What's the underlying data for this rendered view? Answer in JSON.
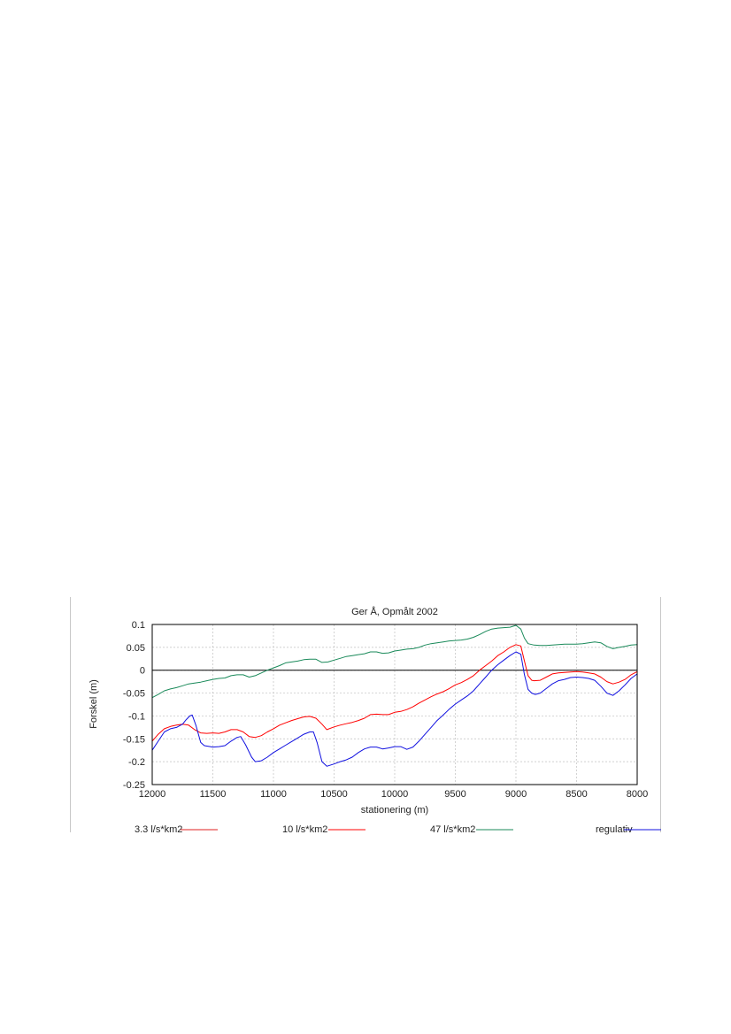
{
  "chart_data": {
    "type": "line",
    "title": "Ger Å, Opmålt 2002",
    "xlabel": "stationering (m)",
    "ylabel": "Forskel (m)",
    "xlim": [
      12000,
      8000
    ],
    "ylim": [
      -0.25,
      0.1
    ],
    "x_reversed": true,
    "grid": true,
    "legend_position": "bottom",
    "x_ticks": [
      12000,
      11500,
      11000,
      10500,
      10000,
      9500,
      9000,
      8500,
      8000
    ],
    "y_ticks": [
      0.1,
      0.05,
      0,
      -0.05,
      -0.1,
      -0.15,
      -0.2,
      -0.25
    ],
    "x_tick_labels": [
      "12000",
      "11500",
      "11000",
      "10500",
      "10000",
      "9500",
      "9000",
      "8500",
      "8000"
    ],
    "y_tick_labels": [
      "0.1",
      "0.05",
      "0",
      "-0.05",
      "-0.1",
      "-0.15",
      "-0.2",
      "-0.25"
    ],
    "reference_line": 0,
    "series": [
      {
        "name": "3.3 l/s*km2",
        "color": "#e02020",
        "show_line": false,
        "points": []
      },
      {
        "name": "10 l/s*km2",
        "color": "#ff0000",
        "show_line": true,
        "points": [
          [
            12000,
            -0.155
          ],
          [
            11950,
            -0.14
          ],
          [
            11900,
            -0.128
          ],
          [
            11850,
            -0.123
          ],
          [
            11800,
            -0.12
          ],
          [
            11750,
            -0.118
          ],
          [
            11700,
            -0.12
          ],
          [
            11650,
            -0.13
          ],
          [
            11600,
            -0.137
          ],
          [
            11550,
            -0.138
          ],
          [
            11500,
            -0.137
          ],
          [
            11450,
            -0.138
          ],
          [
            11400,
            -0.135
          ],
          [
            11350,
            -0.13
          ],
          [
            11300,
            -0.13
          ],
          [
            11250,
            -0.135
          ],
          [
            11200,
            -0.145
          ],
          [
            11150,
            -0.147
          ],
          [
            11100,
            -0.143
          ],
          [
            11050,
            -0.135
          ],
          [
            11000,
            -0.128
          ],
          [
            10950,
            -0.12
          ],
          [
            10900,
            -0.115
          ],
          [
            10850,
            -0.11
          ],
          [
            10800,
            -0.106
          ],
          [
            10750,
            -0.102
          ],
          [
            10700,
            -0.101
          ],
          [
            10650,
            -0.105
          ],
          [
            10600,
            -0.118
          ],
          [
            10560,
            -0.13
          ],
          [
            10500,
            -0.124
          ],
          [
            10450,
            -0.12
          ],
          [
            10400,
            -0.117
          ],
          [
            10350,
            -0.114
          ],
          [
            10300,
            -0.11
          ],
          [
            10250,
            -0.105
          ],
          [
            10200,
            -0.097
          ],
          [
            10150,
            -0.096
          ],
          [
            10100,
            -0.097
          ],
          [
            10050,
            -0.097
          ],
          [
            10000,
            -0.092
          ],
          [
            9950,
            -0.09
          ],
          [
            9900,
            -0.086
          ],
          [
            9850,
            -0.08
          ],
          [
            9800,
            -0.072
          ],
          [
            9750,
            -0.065
          ],
          [
            9700,
            -0.058
          ],
          [
            9650,
            -0.052
          ],
          [
            9600,
            -0.047
          ],
          [
            9550,
            -0.04
          ],
          [
            9500,
            -0.032
          ],
          [
            9450,
            -0.027
          ],
          [
            9400,
            -0.02
          ],
          [
            9350,
            -0.012
          ],
          [
            9300,
            0.0
          ],
          [
            9250,
            0.01
          ],
          [
            9200,
            0.02
          ],
          [
            9150,
            0.032
          ],
          [
            9100,
            0.04
          ],
          [
            9050,
            0.05
          ],
          [
            9000,
            0.056
          ],
          [
            8960,
            0.053
          ],
          [
            8930,
            0.02
          ],
          [
            8900,
            -0.012
          ],
          [
            8870,
            -0.022
          ],
          [
            8850,
            -0.023
          ],
          [
            8800,
            -0.022
          ],
          [
            8750,
            -0.015
          ],
          [
            8700,
            -0.008
          ],
          [
            8650,
            -0.006
          ],
          [
            8600,
            -0.005
          ],
          [
            8550,
            -0.004
          ],
          [
            8500,
            -0.003
          ],
          [
            8450,
            -0.004
          ],
          [
            8400,
            -0.006
          ],
          [
            8350,
            -0.008
          ],
          [
            8300,
            -0.015
          ],
          [
            8250,
            -0.025
          ],
          [
            8200,
            -0.03
          ],
          [
            8150,
            -0.026
          ],
          [
            8100,
            -0.02
          ],
          [
            8050,
            -0.01
          ],
          [
            8000,
            -0.003
          ]
        ]
      },
      {
        "name": "47 l/s*km2",
        "color": "#1a8a5a",
        "show_line": true,
        "points": [
          [
            12000,
            -0.06
          ],
          [
            11950,
            -0.053
          ],
          [
            11900,
            -0.045
          ],
          [
            11850,
            -0.041
          ],
          [
            11800,
            -0.038
          ],
          [
            11750,
            -0.034
          ],
          [
            11700,
            -0.03
          ],
          [
            11650,
            -0.028
          ],
          [
            11600,
            -0.026
          ],
          [
            11550,
            -0.023
          ],
          [
            11500,
            -0.02
          ],
          [
            11450,
            -0.018
          ],
          [
            11400,
            -0.017
          ],
          [
            11350,
            -0.012
          ],
          [
            11300,
            -0.01
          ],
          [
            11250,
            -0.01
          ],
          [
            11200,
            -0.015
          ],
          [
            11150,
            -0.012
          ],
          [
            11100,
            -0.006
          ],
          [
            11050,
            0.0
          ],
          [
            11000,
            0.005
          ],
          [
            10950,
            0.01
          ],
          [
            10900,
            0.016
          ],
          [
            10850,
            0.018
          ],
          [
            10800,
            0.02
          ],
          [
            10750,
            0.023
          ],
          [
            10700,
            0.024
          ],
          [
            10650,
            0.024
          ],
          [
            10600,
            0.017
          ],
          [
            10550,
            0.018
          ],
          [
            10500,
            0.022
          ],
          [
            10450,
            0.026
          ],
          [
            10400,
            0.03
          ],
          [
            10350,
            0.032
          ],
          [
            10300,
            0.034
          ],
          [
            10250,
            0.036
          ],
          [
            10200,
            0.04
          ],
          [
            10150,
            0.04
          ],
          [
            10100,
            0.037
          ],
          [
            10050,
            0.038
          ],
          [
            10000,
            0.042
          ],
          [
            9950,
            0.044
          ],
          [
            9900,
            0.046
          ],
          [
            9850,
            0.047
          ],
          [
            9800,
            0.05
          ],
          [
            9750,
            0.055
          ],
          [
            9700,
            0.058
          ],
          [
            9650,
            0.06
          ],
          [
            9600,
            0.062
          ],
          [
            9550,
            0.064
          ],
          [
            9500,
            0.065
          ],
          [
            9450,
            0.066
          ],
          [
            9400,
            0.068
          ],
          [
            9350,
            0.072
          ],
          [
            9300,
            0.078
          ],
          [
            9250,
            0.085
          ],
          [
            9200,
            0.09
          ],
          [
            9150,
            0.092
          ],
          [
            9100,
            0.093
          ],
          [
            9050,
            0.094
          ],
          [
            9000,
            0.098
          ],
          [
            8960,
            0.09
          ],
          [
            8930,
            0.07
          ],
          [
            8900,
            0.058
          ],
          [
            8850,
            0.055
          ],
          [
            8800,
            0.054
          ],
          [
            8750,
            0.054
          ],
          [
            8700,
            0.055
          ],
          [
            8650,
            0.056
          ],
          [
            8600,
            0.057
          ],
          [
            8550,
            0.057
          ],
          [
            8500,
            0.057
          ],
          [
            8450,
            0.058
          ],
          [
            8400,
            0.06
          ],
          [
            8350,
            0.062
          ],
          [
            8300,
            0.06
          ],
          [
            8250,
            0.052
          ],
          [
            8200,
            0.047
          ],
          [
            8150,
            0.05
          ],
          [
            8100,
            0.052
          ],
          [
            8050,
            0.055
          ],
          [
            8000,
            0.056
          ]
        ]
      },
      {
        "name": "regulativ",
        "color": "#1010e0",
        "show_line": true,
        "points": [
          [
            12000,
            -0.175
          ],
          [
            11950,
            -0.155
          ],
          [
            11900,
            -0.135
          ],
          [
            11850,
            -0.128
          ],
          [
            11800,
            -0.125
          ],
          [
            11750,
            -0.118
          ],
          [
            11720,
            -0.108
          ],
          [
            11690,
            -0.1
          ],
          [
            11670,
            -0.098
          ],
          [
            11640,
            -0.12
          ],
          [
            11600,
            -0.158
          ],
          [
            11570,
            -0.165
          ],
          [
            11500,
            -0.168
          ],
          [
            11450,
            -0.167
          ],
          [
            11400,
            -0.165
          ],
          [
            11350,
            -0.155
          ],
          [
            11300,
            -0.147
          ],
          [
            11270,
            -0.145
          ],
          [
            11230,
            -0.163
          ],
          [
            11180,
            -0.19
          ],
          [
            11150,
            -0.2
          ],
          [
            11100,
            -0.198
          ],
          [
            11050,
            -0.19
          ],
          [
            11000,
            -0.18
          ],
          [
            10950,
            -0.172
          ],
          [
            10900,
            -0.164
          ],
          [
            10850,
            -0.156
          ],
          [
            10800,
            -0.148
          ],
          [
            10750,
            -0.14
          ],
          [
            10700,
            -0.135
          ],
          [
            10670,
            -0.135
          ],
          [
            10640,
            -0.158
          ],
          [
            10600,
            -0.2
          ],
          [
            10560,
            -0.21
          ],
          [
            10500,
            -0.205
          ],
          [
            10450,
            -0.2
          ],
          [
            10400,
            -0.196
          ],
          [
            10350,
            -0.19
          ],
          [
            10300,
            -0.18
          ],
          [
            10250,
            -0.172
          ],
          [
            10200,
            -0.168
          ],
          [
            10150,
            -0.168
          ],
          [
            10100,
            -0.172
          ],
          [
            10050,
            -0.17
          ],
          [
            10000,
            -0.167
          ],
          [
            9950,
            -0.167
          ],
          [
            9900,
            -0.173
          ],
          [
            9850,
            -0.168
          ],
          [
            9800,
            -0.155
          ],
          [
            9750,
            -0.14
          ],
          [
            9700,
            -0.125
          ],
          [
            9650,
            -0.11
          ],
          [
            9600,
            -0.098
          ],
          [
            9550,
            -0.085
          ],
          [
            9500,
            -0.074
          ],
          [
            9450,
            -0.065
          ],
          [
            9400,
            -0.056
          ],
          [
            9350,
            -0.045
          ],
          [
            9300,
            -0.03
          ],
          [
            9250,
            -0.015
          ],
          [
            9200,
            0.0
          ],
          [
            9150,
            0.012
          ],
          [
            9100,
            0.022
          ],
          [
            9050,
            0.032
          ],
          [
            9000,
            0.04
          ],
          [
            8960,
            0.035
          ],
          [
            8930,
            -0.01
          ],
          [
            8900,
            -0.042
          ],
          [
            8870,
            -0.05
          ],
          [
            8840,
            -0.053
          ],
          [
            8800,
            -0.05
          ],
          [
            8750,
            -0.04
          ],
          [
            8700,
            -0.03
          ],
          [
            8650,
            -0.023
          ],
          [
            8600,
            -0.02
          ],
          [
            8550,
            -0.016
          ],
          [
            8500,
            -0.015
          ],
          [
            8450,
            -0.016
          ],
          [
            8400,
            -0.018
          ],
          [
            8350,
            -0.022
          ],
          [
            8300,
            -0.035
          ],
          [
            8250,
            -0.05
          ],
          [
            8200,
            -0.055
          ],
          [
            8150,
            -0.045
          ],
          [
            8100,
            -0.032
          ],
          [
            8050,
            -0.018
          ],
          [
            8000,
            -0.008
          ]
        ]
      }
    ]
  }
}
